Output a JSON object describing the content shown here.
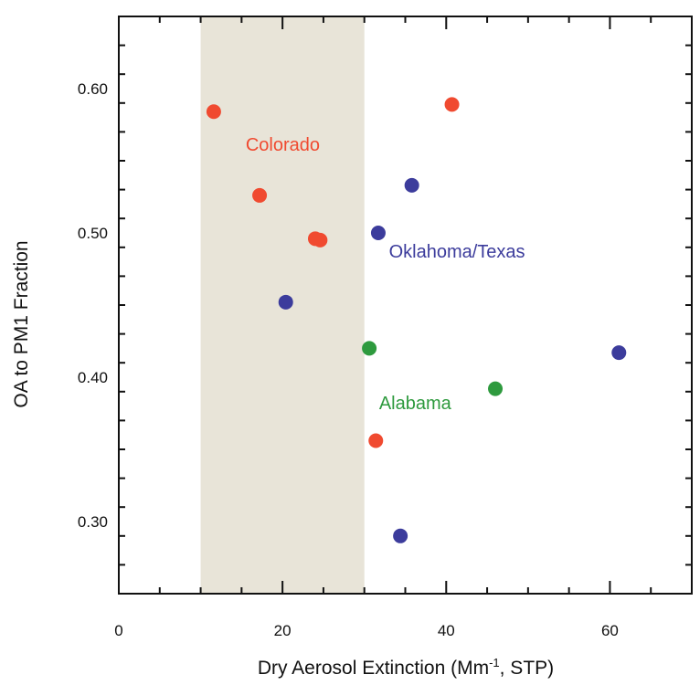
{
  "chart_data": {
    "type": "scatter",
    "title": "",
    "xlabel": "Dry Aerosol Extinction (Mm",
    "xlabel_sup": "-1",
    "xlabel_tail": ", STP)",
    "ylabel": "OA to PM1 Fraction",
    "xlim": [
      0,
      70
    ],
    "ylim": [
      0.25,
      0.65
    ],
    "xticks": [
      0,
      20,
      40,
      60
    ],
    "xtick_labels": [
      "0",
      "20",
      "40",
      "60"
    ],
    "xminor_step": 5,
    "yticks": [
      0.3,
      0.4,
      0.5,
      0.6
    ],
    "ytick_labels": [
      "0.30",
      "0.40",
      "0.50",
      "0.60"
    ],
    "yminor_step": 0.02,
    "grid": false,
    "shaded_region": {
      "x": [
        10,
        30
      ],
      "color": "#e8e4d8"
    },
    "series": [
      {
        "name": "Colorado",
        "color": "#f04a30",
        "label_position": [
          15.5,
          0.557
        ],
        "points": [
          {
            "x": 11.6,
            "y": 0.584
          },
          {
            "x": 17.2,
            "y": 0.526
          },
          {
            "x": 24.0,
            "y": 0.496
          },
          {
            "x": 24.6,
            "y": 0.495
          },
          {
            "x": 31.4,
            "y": 0.356
          },
          {
            "x": 40.7,
            "y": 0.589
          }
        ]
      },
      {
        "name": "Oklahoma/Texas",
        "color": "#3c3c9c",
        "label_position": [
          33.0,
          0.483
        ],
        "points": [
          {
            "x": 20.4,
            "y": 0.452
          },
          {
            "x": 31.7,
            "y": 0.5
          },
          {
            "x": 35.8,
            "y": 0.533
          },
          {
            "x": 34.4,
            "y": 0.29
          },
          {
            "x": 61.1,
            "y": 0.417
          }
        ]
      },
      {
        "name": "Alabama",
        "color": "#2e9a3e",
        "label_position": [
          31.8,
          0.378
        ],
        "points": [
          {
            "x": 30.6,
            "y": 0.42
          },
          {
            "x": 46.0,
            "y": 0.392
          }
        ]
      }
    ]
  }
}
